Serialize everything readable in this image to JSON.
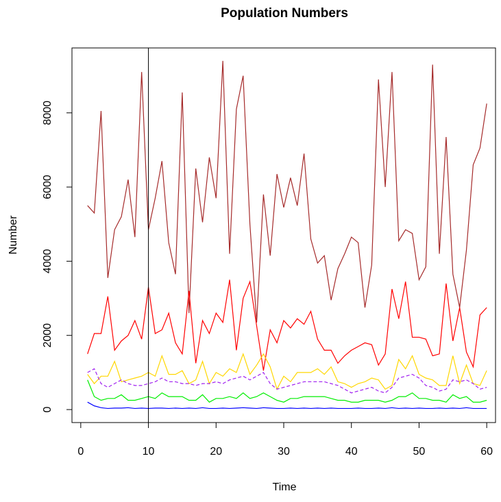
{
  "chart_data": {
    "type": "line",
    "title": "Population  Numbers",
    "xlabel": "Time",
    "ylabel": "Number",
    "x": [
      1,
      2,
      3,
      4,
      5,
      6,
      7,
      8,
      9,
      10,
      11,
      12,
      13,
      14,
      15,
      16,
      17,
      18,
      19,
      20,
      21,
      22,
      23,
      24,
      25,
      26,
      27,
      28,
      29,
      30,
      31,
      32,
      33,
      34,
      35,
      36,
      37,
      38,
      39,
      40,
      41,
      42,
      43,
      44,
      45,
      46,
      47,
      48,
      49,
      50,
      51,
      52,
      53,
      54,
      55,
      56,
      57,
      58,
      59,
      60
    ],
    "series": [
      {
        "color": "#a52a2a",
        "dash": false,
        "values": [
          5500,
          5300,
          8050,
          3550,
          4850,
          5200,
          6200,
          4650,
          9100,
          4850,
          5700,
          6700,
          4500,
          3650,
          8550,
          2600,
          6500,
          5050,
          6800,
          5700,
          9400,
          4200,
          8100,
          9000,
          5000,
          2350,
          5800,
          4150,
          6350,
          5450,
          6250,
          5500,
          6900,
          4600,
          3950,
          4150,
          2950,
          3800,
          4200,
          4650,
          4500,
          2750,
          3900,
          8900,
          6000,
          9100,
          4550,
          4850,
          4750,
          3500,
          3850,
          9300,
          4200,
          7350,
          3650,
          2750,
          4300,
          6600,
          7050,
          8250
        ]
      },
      {
        "color": "#ff0000",
        "dash": false,
        "values": [
          1500,
          2050,
          2050,
          3050,
          1600,
          1850,
          2000,
          2400,
          1900,
          3300,
          2050,
          2150,
          2600,
          1800,
          1500,
          3200,
          1250,
          2400,
          2050,
          2600,
          2350,
          3500,
          1600,
          3000,
          3450,
          2250,
          1050,
          2150,
          1800,
          2400,
          2200,
          2450,
          2300,
          2650,
          1900,
          1600,
          1600,
          1250,
          1450,
          1600,
          1700,
          1800,
          1750,
          1200,
          1500,
          3250,
          2450,
          3450,
          1950,
          1950,
          1900,
          1450,
          1500,
          3400,
          1850,
          2750,
          1550,
          1150,
          2550,
          2750
        ]
      },
      {
        "color": "#ffd700",
        "dash": false,
        "values": [
          950,
          700,
          900,
          900,
          1300,
          750,
          800,
          850,
          900,
          1000,
          900,
          1450,
          950,
          950,
          1050,
          700,
          800,
          1300,
          700,
          1000,
          900,
          1100,
          1000,
          1500,
          950,
          1200,
          1500,
          1150,
          550,
          900,
          750,
          1000,
          1000,
          1000,
          1100,
          950,
          1150,
          750,
          700,
          600,
          700,
          750,
          850,
          800,
          550,
          650,
          1350,
          1100,
          1450,
          950,
          850,
          800,
          650,
          650,
          1450,
          700,
          1200,
          700,
          650,
          1050
        ]
      },
      {
        "color": "#a020f0",
        "dash": true,
        "values": [
          1000,
          1100,
          700,
          600,
          700,
          800,
          700,
          650,
          650,
          700,
          750,
          850,
          750,
          750,
          700,
          700,
          650,
          700,
          700,
          750,
          700,
          800,
          850,
          900,
          800,
          900,
          1000,
          700,
          550,
          600,
          650,
          700,
          750,
          750,
          750,
          750,
          700,
          650,
          550,
          450,
          500,
          550,
          600,
          500,
          450,
          600,
          850,
          900,
          950,
          850,
          650,
          600,
          500,
          550,
          800,
          750,
          800,
          700,
          550,
          600
        ]
      },
      {
        "color": "#00ee00",
        "dash": false,
        "values": [
          800,
          350,
          250,
          300,
          300,
          400,
          250,
          250,
          300,
          350,
          300,
          450,
          350,
          350,
          350,
          250,
          250,
          400,
          200,
          300,
          300,
          350,
          300,
          450,
          300,
          350,
          450,
          350,
          250,
          200,
          300,
          300,
          350,
          350,
          350,
          350,
          300,
          250,
          250,
          200,
          200,
          250,
          250,
          250,
          200,
          250,
          350,
          350,
          450,
          300,
          300,
          250,
          250,
          200,
          400,
          300,
          350,
          200,
          200,
          250
        ]
      },
      {
        "color": "#0000ff",
        "dash": false,
        "values": [
          200,
          100,
          50,
          30,
          40,
          40,
          50,
          30,
          40,
          30,
          40,
          40,
          30,
          40,
          30,
          40,
          30,
          50,
          30,
          30,
          40,
          30,
          40,
          50,
          40,
          30,
          50,
          40,
          30,
          30,
          40,
          30,
          40,
          30,
          40,
          30,
          40,
          30,
          30,
          30,
          40,
          30,
          30,
          40,
          30,
          50,
          30,
          40,
          30,
          40,
          30,
          30,
          40,
          30,
          40,
          30,
          50,
          30,
          30,
          30
        ]
      }
    ],
    "vline": 10,
    "xlim": [
      -1.3,
      61.3
    ],
    "ylim": [
      -350,
      9750
    ],
    "xticks": [
      0,
      10,
      20,
      30,
      40,
      50,
      60
    ],
    "yticks": [
      0,
      2000,
      4000,
      6000,
      8000
    ]
  }
}
